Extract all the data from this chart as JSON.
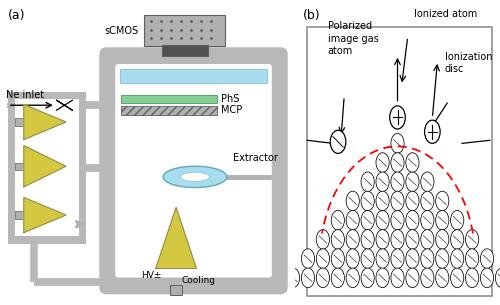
{
  "fig_width": 5.0,
  "fig_height": 3.05,
  "dpi": 100,
  "bg_color": "#ffffff",
  "gray_light": "#c8c8c8",
  "gray_mid": "#b0b0b0",
  "gray_dark": "#606060",
  "gray_wall": "#b8b8b8",
  "yellow_color": "#d4c840",
  "cyan_light": "#a8ddf0",
  "green_light": "#88cc98",
  "label_a": "(a)",
  "label_b": "(b)",
  "scmos_label": "sCMOS",
  "ne_label": "Ne inlet",
  "phs_label": "PhS",
  "mcp_label": "MCP",
  "extractor_label": "Extractor",
  "hv_label": "HV±",
  "cooling_label": "Cooling",
  "ionized_label": "Ionized atom",
  "polarized_label": "Polarized\nimage gas\natom",
  "ionization_label": "Ionization\ndisc",
  "box_border": "#909090"
}
